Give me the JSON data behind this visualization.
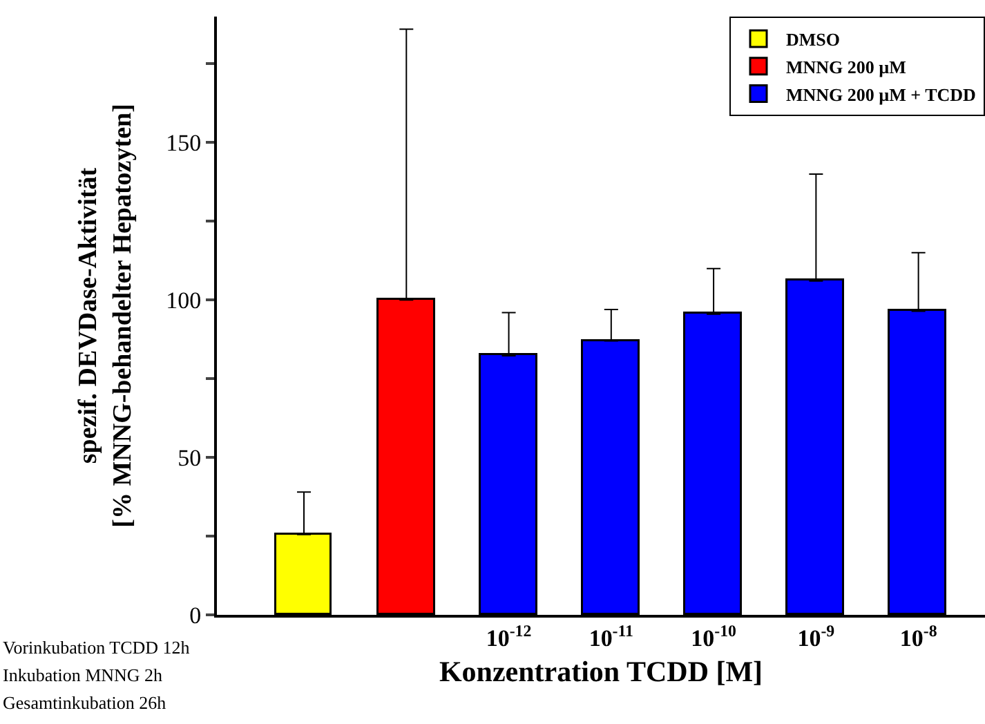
{
  "chart_data": {
    "type": "bar",
    "xlabel": "Konzentration TCDD [M]",
    "ylabel": "spezif. DEVDase-Aktivität\n[% MNNG-behandelter Hepatozyten]",
    "categories": [
      null,
      null,
      "10$^{-12}$",
      "10$^{-11}$",
      "10$^{-10}$",
      "10$^{-9}$",
      "10$^{-8}$"
    ],
    "series": [
      {
        "name": "DMSO",
        "color": "#ffff00",
        "values": [
          25.5,
          null,
          null,
          null,
          null,
          null,
          null
        ],
        "errors": [
          [
            25.5,
            39
          ],
          null,
          null,
          null,
          null,
          null,
          null
        ]
      },
      {
        "name": "MNNG 200 µM",
        "color": "#ff0000",
        "values": [
          null,
          100,
          null,
          null,
          null,
          null,
          null
        ],
        "errors": [
          null,
          [
            100,
            186
          ],
          null,
          null,
          null,
          null,
          null
        ]
      },
      {
        "name": "MNNG 200 µM + TCDD",
        "color": "#0000ff",
        "values": [
          null,
          null,
          82.3,
          87,
          95.5,
          106,
          96.4
        ],
        "errors": [
          null,
          null,
          [
            82.3,
            96
          ],
          [
            87,
            97
          ],
          [
            95.5,
            110
          ],
          [
            106,
            140
          ],
          [
            96.4,
            115
          ]
        ]
      }
    ],
    "ylim": [
      0,
      190
    ],
    "yticks": [
      0,
      {
        "value": 25,
        "label": null
      },
      50,
      {
        "value": 75,
        "label": null
      },
      100,
      {
        "value": 125,
        "label": null
      },
      150,
      {
        "value": 175,
        "label": null
      }
    ],
    "grid": false,
    "legend": "top right",
    "annotations": [
      "Vorinkubation TCDD 12h",
      "Inkubation MNNG 2h",
      "Gesamtinkubation 26h"
    ]
  }
}
